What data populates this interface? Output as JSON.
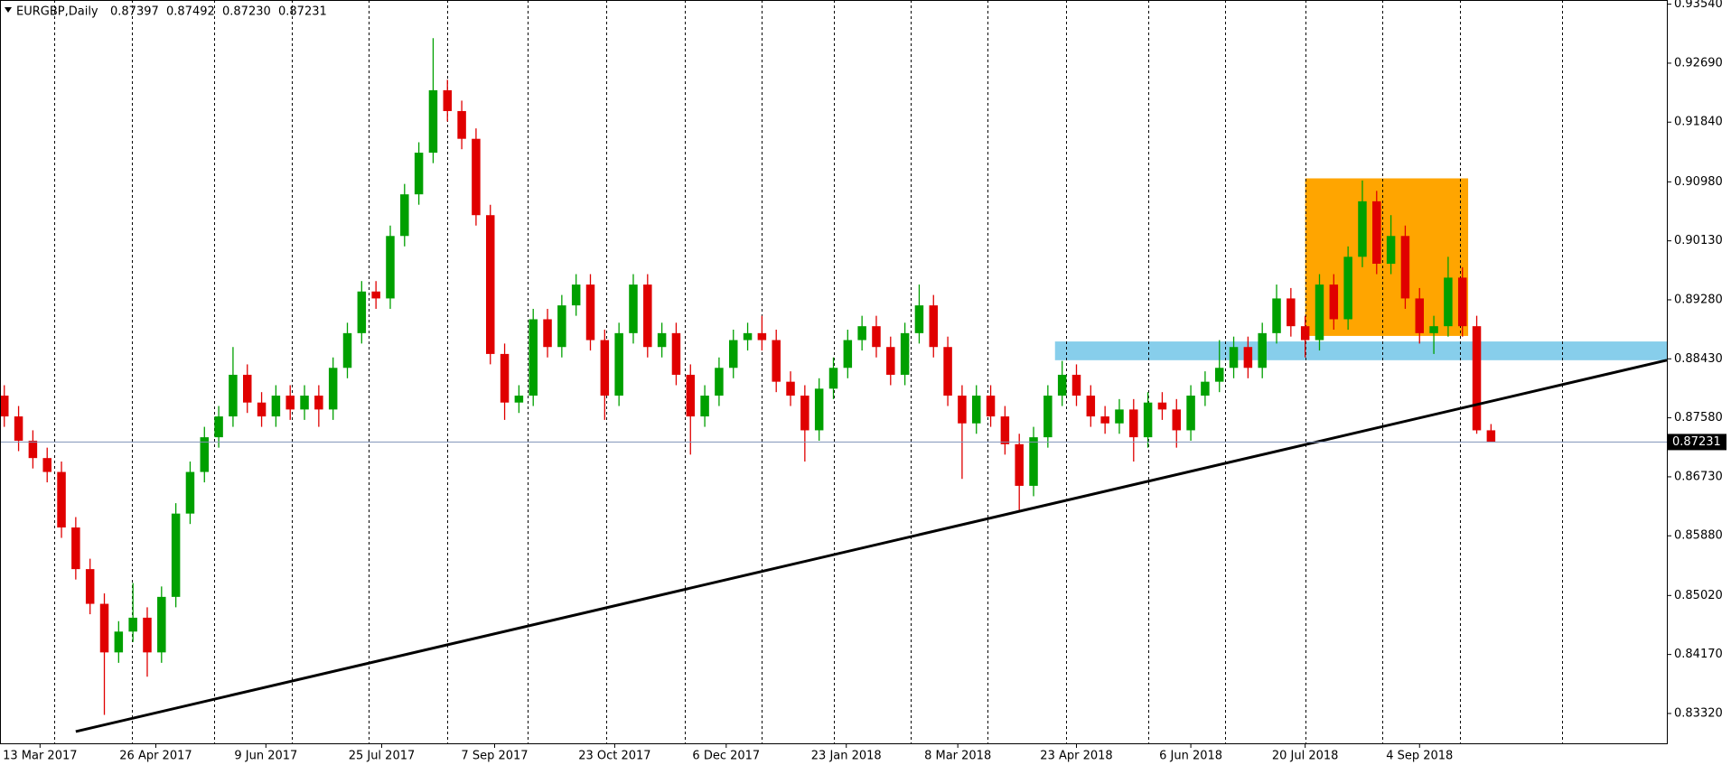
{
  "chart_data": {
    "type": "candlestick",
    "symbol": "EURGBP,Daily",
    "last_bar": [
      0.87397,
      0.87492,
      {
        "value": 0.8723,
        "label": "0.87230"
      },
      0.87231
    ],
    "current_price": 0.87231,
    "up_color": "#00a000",
    "down_color": "#e00000",
    "xlim": [
      -0.3,
      116.3
    ],
    "ylim": [
      0.8289,
      0.936
    ],
    "yticks": [
      {
        "value": 0.9354,
        "label": "0.93540"
      },
      {
        "value": 0.9269,
        "label": "0.92690"
      },
      {
        "value": 0.9184,
        "label": "0.91840"
      },
      {
        "value": 0.9098,
        "label": "0.90980"
      },
      {
        "value": 0.9013,
        "label": "0.90130"
      },
      {
        "value": 0.8928,
        "label": "0.89280"
      },
      {
        "value": 0.8843,
        "label": "0.88430"
      },
      {
        "value": 0.8758,
        "label": "0.87580"
      },
      {
        "value": 0.8673,
        "label": "0.86730"
      },
      {
        "value": 0.8588,
        "label": "0.85880"
      },
      {
        "value": 0.8502,
        "label": "0.85020"
      },
      {
        "value": 0.8417,
        "label": "0.84170"
      },
      {
        "value": 0.8332,
        "label": "0.83320"
      }
    ],
    "xticks": [
      {
        "value": 2.5,
        "label": "13 Mar 2017"
      },
      {
        "value": 10.6,
        "label": "26 Apr 2017"
      },
      {
        "value": 18.3,
        "label": "9 Jun 2017"
      },
      {
        "value": 26.4,
        "label": "25 Jul 2017"
      },
      {
        "value": 34.3,
        "label": "7 Sep 2017"
      },
      {
        "value": 42.7,
        "label": "23 Oct 2017"
      },
      {
        "value": 50.5,
        "label": "6 Dec 2017"
      },
      {
        "value": 58.9,
        "label": "23 Jan 2018"
      },
      {
        "value": 66.7,
        "label": "8 Mar 2018"
      },
      {
        "value": 75,
        "label": "23 Apr 2018"
      },
      {
        "value": 83,
        "label": "6 Jun 2018"
      },
      {
        "value": 91,
        "label": "20 Jul 2018"
      },
      {
        "value": 99,
        "label": "4 Sep 2018"
      }
    ],
    "vgrid": [
      3.5,
      8.9,
      14.7,
      20.1,
      25.5,
      31,
      36.6,
      42.1,
      47.6,
      53,
      58,
      63.4,
      68.8,
      74.3,
      80,
      85.4,
      91,
      96.4,
      101.8,
      109
    ],
    "shapes": [
      {
        "kind": "rectangle",
        "color": "#ffa500",
        "x": [
          91,
          102.4
        ],
        "y": [
          0.8876,
          0.9103
        ]
      },
      {
        "kind": "rectangle",
        "color": "#87ceeb",
        "x": [
          73.5,
          116.3
        ],
        "y": [
          0.8841,
          0.8868
        ]
      },
      {
        "kind": "line",
        "color": "#000000",
        "x": [
          5,
          116.3
        ],
        "y": [
          0.8306,
          0.8841
        ]
      }
    ],
    "candles": [
      [
        0.879,
        0.8805,
        0.8745,
        0.876
      ],
      [
        0.876,
        0.8775,
        0.871,
        0.8725
      ],
      [
        0.8725,
        0.874,
        0.8685,
        0.87
      ],
      [
        0.87,
        0.8715,
        0.8665,
        0.868
      ],
      [
        0.868,
        0.8695,
        0.8585,
        0.86
      ],
      [
        0.86,
        0.8615,
        0.8525,
        0.854
      ],
      [
        0.854,
        0.8555,
        0.8475,
        0.849
      ],
      [
        0.849,
        0.8505,
        0.833,
        0.842
      ],
      [
        0.842,
        0.8465,
        0.8405,
        0.845
      ],
      [
        0.845,
        0.852,
        0.8435,
        0.847
      ],
      [
        0.847,
        0.8485,
        0.8385,
        0.842
      ],
      [
        0.842,
        0.8515,
        0.8405,
        0.85
      ],
      [
        0.85,
        0.8635,
        0.8485,
        0.862
      ],
      [
        0.862,
        0.8695,
        0.8605,
        0.868
      ],
      [
        0.868,
        0.8745,
        0.8665,
        0.873
      ],
      [
        0.873,
        0.8775,
        0.8715,
        0.876
      ],
      [
        0.876,
        0.886,
        0.8745,
        0.882
      ],
      [
        0.882,
        0.8835,
        0.8765,
        0.878
      ],
      [
        0.878,
        0.8795,
        0.8745,
        0.876
      ],
      [
        0.876,
        0.8805,
        0.8745,
        0.879
      ],
      [
        0.879,
        0.8805,
        0.8755,
        0.877
      ],
      [
        0.877,
        0.8805,
        0.8755,
        0.879
      ],
      [
        0.879,
        0.8805,
        0.8745,
        0.877
      ],
      [
        0.877,
        0.8845,
        0.8755,
        0.883
      ],
      [
        0.883,
        0.8895,
        0.8815,
        0.888
      ],
      [
        0.888,
        0.8955,
        0.8865,
        0.894
      ],
      [
        0.894,
        0.8955,
        0.8915,
        0.893
      ],
      [
        0.893,
        0.9035,
        0.8915,
        0.902
      ],
      [
        0.902,
        0.9095,
        0.9005,
        0.908
      ],
      [
        0.908,
        0.9155,
        0.9065,
        0.914
      ],
      [
        0.914,
        0.9305,
        0.9125,
        0.923
      ],
      [
        0.923,
        0.9245,
        0.9185,
        0.92
      ],
      [
        0.92,
        0.9215,
        0.9145,
        0.916
      ],
      [
        0.916,
        0.9175,
        0.9035,
        0.905
      ],
      [
        0.905,
        0.9065,
        0.8835,
        0.885
      ],
      [
        0.885,
        0.8865,
        0.8755,
        0.878
      ],
      [
        0.878,
        0.8805,
        0.8765,
        0.879
      ],
      [
        0.879,
        0.8915,
        0.8775,
        0.89
      ],
      [
        0.89,
        0.8915,
        0.8845,
        0.886
      ],
      [
        0.886,
        0.8935,
        0.8845,
        0.892
      ],
      [
        0.892,
        0.8965,
        0.8905,
        0.895
      ],
      [
        0.895,
        0.8965,
        0.8855,
        0.887
      ],
      [
        0.887,
        0.8885,
        0.8755,
        0.879
      ],
      [
        0.879,
        0.8895,
        0.8775,
        0.888
      ],
      [
        0.888,
        0.8965,
        0.8865,
        0.895
      ],
      [
        0.895,
        0.8965,
        0.8845,
        0.886
      ],
      [
        0.886,
        0.8895,
        0.8845,
        0.888
      ],
      [
        0.888,
        0.8895,
        0.8805,
        0.882
      ],
      [
        0.882,
        0.8835,
        0.8705,
        0.876
      ],
      [
        0.876,
        0.8805,
        0.8745,
        0.879
      ],
      [
        0.879,
        0.8845,
        0.8775,
        0.883
      ],
      [
        0.883,
        0.8885,
        0.8815,
        0.887
      ],
      [
        0.887,
        0.8895,
        0.8855,
        0.888
      ],
      [
        0.888,
        0.8905,
        0.8855,
        0.887
      ],
      [
        0.887,
        0.8885,
        0.8795,
        0.881
      ],
      [
        0.881,
        0.8825,
        0.8775,
        0.879
      ],
      [
        0.879,
        0.8805,
        0.8695,
        0.874
      ],
      [
        0.874,
        0.8815,
        0.8725,
        0.88
      ],
      [
        0.88,
        0.8845,
        0.8785,
        0.883
      ],
      [
        0.883,
        0.8885,
        0.8815,
        0.887
      ],
      [
        0.887,
        0.8905,
        0.8855,
        0.889
      ],
      [
        0.889,
        0.8905,
        0.8845,
        0.886
      ],
      [
        0.886,
        0.8875,
        0.8805,
        0.882
      ],
      [
        0.882,
        0.8895,
        0.8805,
        0.888
      ],
      [
        0.888,
        0.895,
        0.8865,
        0.892
      ],
      [
        0.892,
        0.8935,
        0.8845,
        0.886
      ],
      [
        0.886,
        0.8875,
        0.8775,
        0.879
      ],
      [
        0.879,
        0.8805,
        0.867,
        0.875
      ],
      [
        0.875,
        0.8805,
        0.8735,
        0.879
      ],
      [
        0.879,
        0.8805,
        0.8745,
        0.876
      ],
      [
        0.876,
        0.8775,
        0.8705,
        0.872
      ],
      [
        0.872,
        0.8735,
        0.8625,
        0.866
      ],
      [
        0.866,
        0.8745,
        0.8645,
        0.873
      ],
      [
        0.873,
        0.8805,
        0.8715,
        0.879
      ],
      [
        0.879,
        0.884,
        0.8775,
        0.882
      ],
      [
        0.882,
        0.8835,
        0.8775,
        0.879
      ],
      [
        0.879,
        0.8805,
        0.8745,
        0.876
      ],
      [
        0.876,
        0.8775,
        0.8735,
        0.875
      ],
      [
        0.875,
        0.8785,
        0.8735,
        0.877
      ],
      [
        0.877,
        0.8785,
        0.8695,
        0.873
      ],
      [
        0.873,
        0.8795,
        0.8715,
        0.878
      ],
      [
        0.878,
        0.8795,
        0.8755,
        0.877
      ],
      [
        0.877,
        0.8785,
        0.8715,
        0.874
      ],
      [
        0.874,
        0.8805,
        0.8725,
        0.879
      ],
      [
        0.879,
        0.8825,
        0.8775,
        0.881
      ],
      [
        0.881,
        0.887,
        0.8795,
        0.883
      ],
      [
        0.883,
        0.8875,
        0.8815,
        0.886
      ],
      [
        0.886,
        0.8875,
        0.8815,
        0.883
      ],
      [
        0.883,
        0.8895,
        0.8815,
        0.888
      ],
      [
        0.888,
        0.895,
        0.8865,
        0.893
      ],
      [
        0.893,
        0.8945,
        0.8875,
        0.889
      ],
      [
        0.889,
        0.8905,
        0.8845,
        0.887
      ],
      [
        0.887,
        0.8965,
        0.8855,
        0.895
      ],
      [
        0.895,
        0.8965,
        0.8885,
        0.89
      ],
      [
        0.89,
        0.9005,
        0.8885,
        0.899
      ],
      [
        0.899,
        0.91,
        0.8975,
        0.907
      ],
      [
        0.907,
        0.9085,
        0.8965,
        0.898
      ],
      [
        0.898,
        0.905,
        0.8965,
        0.902
      ],
      [
        0.902,
        0.9035,
        0.8915,
        0.893
      ],
      [
        0.893,
        0.8945,
        0.8865,
        0.888
      ],
      [
        0.888,
        0.8905,
        0.885,
        0.889
      ],
      [
        0.889,
        0.899,
        0.8875,
        0.896
      ],
      [
        0.896,
        0.8975,
        0.8875,
        0.889
      ],
      [
        0.889,
        0.8905,
        0.8735,
        0.874
      ],
      [
        0.874,
        0.8749,
        0.8723,
        0.87231
      ]
    ]
  }
}
